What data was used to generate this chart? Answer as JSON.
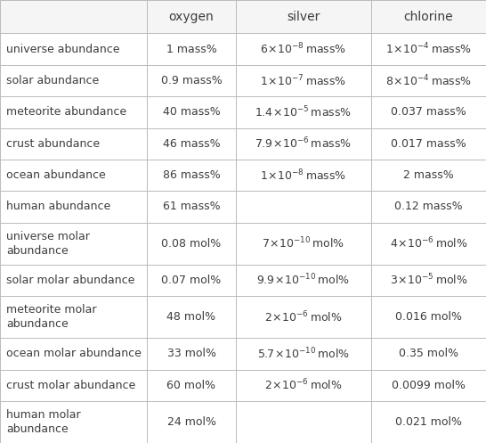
{
  "col_headers": [
    "",
    "oxygen",
    "silver",
    "chlorine"
  ],
  "rows": [
    {
      "label": "universe abundance",
      "oxygen": "1 mass%",
      "silver_mantissa": "6",
      "silver_exponent": "-8",
      "silver_unit": "mass%",
      "chlorine_mantissa": "1",
      "chlorine_exponent": "-4",
      "chlorine_unit": "mass%"
    },
    {
      "label": "solar abundance",
      "oxygen": "0.9 mass%",
      "silver_mantissa": "1",
      "silver_exponent": "-7",
      "silver_unit": "mass%",
      "chlorine_mantissa": "8",
      "chlorine_exponent": "-4",
      "chlorine_unit": "mass%"
    },
    {
      "label": "meteorite abundance",
      "oxygen": "40 mass%",
      "silver_mantissa": "1.4",
      "silver_exponent": "-5",
      "silver_unit": "mass%",
      "chlorine_plain": "0.037 mass%"
    },
    {
      "label": "crust abundance",
      "oxygen": "46 mass%",
      "silver_mantissa": "7.9",
      "silver_exponent": "-6",
      "silver_unit": "mass%",
      "chlorine_plain": "0.017 mass%"
    },
    {
      "label": "ocean abundance",
      "oxygen": "86 mass%",
      "silver_mantissa": "1",
      "silver_exponent": "-8",
      "silver_unit": "mass%",
      "chlorine_plain": "2 mass%"
    },
    {
      "label": "human abundance",
      "oxygen": "61 mass%",
      "silver_plain": "",
      "chlorine_plain": "0.12 mass%"
    },
    {
      "label": "universe molar\nabundance",
      "oxygen": "0.08 mol%",
      "silver_mantissa": "7",
      "silver_exponent": "-10",
      "silver_unit": "mol%",
      "chlorine_mantissa": "4",
      "chlorine_exponent": "-6",
      "chlorine_unit": "mol%"
    },
    {
      "label": "solar molar abundance",
      "oxygen": "0.07 mol%",
      "silver_mantissa": "9.9",
      "silver_exponent": "-10",
      "silver_unit": "mol%",
      "chlorine_mantissa": "3",
      "chlorine_exponent": "-5",
      "chlorine_unit": "mol%"
    },
    {
      "label": "meteorite molar\nabundance",
      "oxygen": "48 mol%",
      "silver_mantissa": "2",
      "silver_exponent": "-6",
      "silver_unit": "mol%",
      "chlorine_plain": "0.016 mol%"
    },
    {
      "label": "ocean molar abundance",
      "oxygen": "33 mol%",
      "silver_mantissa": "5.7",
      "silver_exponent": "-10",
      "silver_unit": "mol%",
      "chlorine_plain": "0.35 mol%"
    },
    {
      "label": "crust molar abundance",
      "oxygen": "60 mol%",
      "silver_mantissa": "2",
      "silver_exponent": "-6",
      "silver_unit": "mol%",
      "chlorine_plain": "0.0099 mol%"
    },
    {
      "label": "human molar\nabundance",
      "oxygen": "24 mol%",
      "silver_plain": "",
      "chlorine_plain": "0.021 mol%"
    }
  ],
  "bg_color": "#ffffff",
  "border_color": "#bbbbbb",
  "text_color": "#3d3d3d",
  "font_size": 9.0,
  "header_font_size": 10.0,
  "fig_w": 5.46,
  "fig_h": 4.97,
  "dpi": 100
}
